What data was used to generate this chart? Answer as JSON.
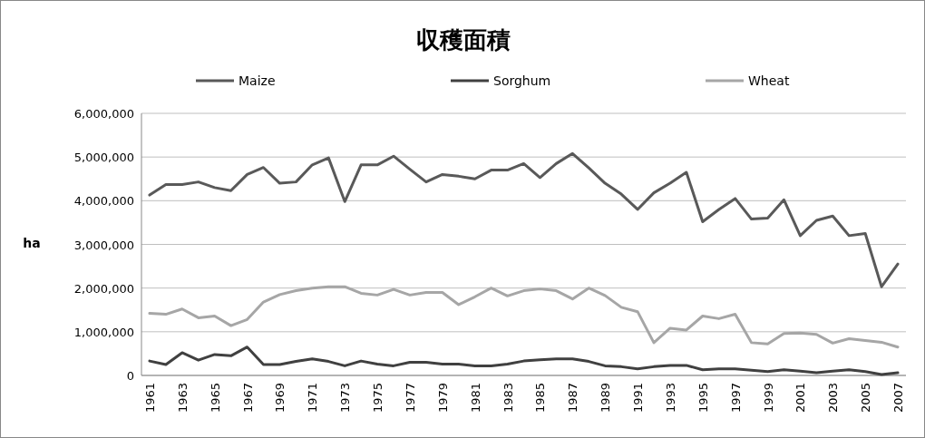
{
  "chart_data": {
    "type": "line",
    "title": "収穫面積",
    "ylabel": "ha",
    "categories": [
      "1961",
      null,
      "1963",
      null,
      "1965",
      null,
      "1967",
      null,
      "1969",
      null,
      "1971",
      null,
      "1973",
      null,
      "1975",
      null,
      "1977",
      null,
      "1979",
      null,
      "1981",
      null,
      "1983",
      null,
      "1985",
      null,
      "1987",
      null,
      "1989",
      null,
      "1991",
      null,
      "1993",
      null,
      "1995",
      null,
      "1997",
      null,
      "1999",
      null,
      "2001",
      null,
      "2003",
      null,
      "2005",
      null,
      "2007"
    ],
    "series": [
      {
        "name": "Maize",
        "color": "#595959",
        "values": [
          4130000,
          4370000,
          4370000,
          4430000,
          4300000,
          4230000,
          4600000,
          4760000,
          4400000,
          4430000,
          4820000,
          4980000,
          3980000,
          4820000,
          4820000,
          5020000,
          4720000,
          4430000,
          4600000,
          4560000,
          4500000,
          4700000,
          4700000,
          4850000,
          4530000,
          4850000,
          5080000,
          4750000,
          4400000,
          4150000,
          3800000,
          4180000,
          4400000,
          4650000,
          3520000,
          3800000,
          4050000,
          3580000,
          3600000,
          4020000,
          3200000,
          3550000,
          3650000,
          3200000,
          3250000,
          2030000,
          2550000
        ]
      },
      {
        "name": "Sorghum",
        "color": "#404040",
        "values": [
          330000,
          250000,
          520000,
          350000,
          480000,
          450000,
          650000,
          250000,
          250000,
          320000,
          380000,
          320000,
          220000,
          330000,
          260000,
          220000,
          300000,
          300000,
          260000,
          260000,
          220000,
          220000,
          260000,
          330000,
          360000,
          380000,
          380000,
          320000,
          220000,
          200000,
          150000,
          200000,
          230000,
          230000,
          130000,
          150000,
          150000,
          120000,
          90000,
          130000,
          100000,
          60000,
          100000,
          130000,
          90000,
          20000,
          60000
        ]
      },
      {
        "name": "Wheat",
        "color": "#a6a6a6",
        "values": [
          1420000,
          1400000,
          1520000,
          1320000,
          1360000,
          1140000,
          1280000,
          1680000,
          1850000,
          1940000,
          2000000,
          2030000,
          2030000,
          1880000,
          1840000,
          1970000,
          1840000,
          1900000,
          1900000,
          1620000,
          1800000,
          2000000,
          1820000,
          1940000,
          1980000,
          1940000,
          1750000,
          2000000,
          1830000,
          1560000,
          1460000,
          750000,
          1080000,
          1040000,
          1360000,
          1300000,
          1400000,
          750000,
          720000,
          960000,
          970000,
          940000,
          740000,
          840000,
          800000,
          760000,
          650000
        ]
      }
    ],
    "ylim": [
      0,
      6000000
    ],
    "yticks": [
      0,
      {
        "value": 1000000,
        "label": "1,000,000"
      },
      {
        "value": 2000000,
        "label": "2,000,000"
      },
      {
        "value": 3000000,
        "label": "3,000,000"
      },
      {
        "value": 4000000,
        "label": "4,000,000"
      },
      {
        "value": 5000000,
        "label": "5,000,000"
      },
      {
        "value": 6000000,
        "label": "6,000,000"
      }
    ],
    "grid": "y",
    "legend": "top",
    "marker": "none",
    "line_style": "solid"
  }
}
